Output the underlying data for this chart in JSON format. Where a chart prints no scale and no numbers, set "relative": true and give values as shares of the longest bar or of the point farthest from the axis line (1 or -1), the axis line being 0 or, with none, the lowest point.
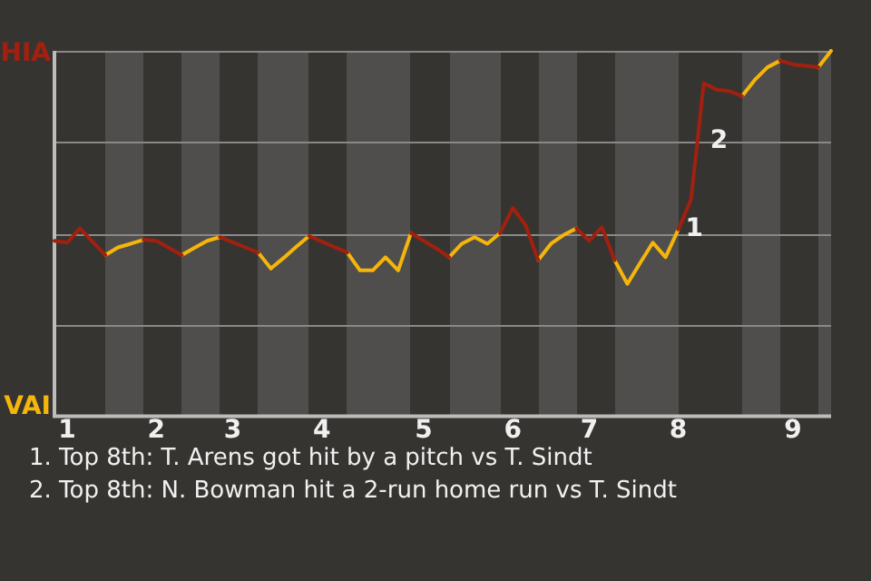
{
  "chart_data": {
    "type": "line",
    "categories": [
      null,
      "1",
      null,
      null,
      null,
      null,
      null,
      null,
      "2",
      null,
      null,
      null,
      null,
      null,
      "3",
      null,
      null,
      null,
      null,
      null,
      null,
      "4",
      null,
      null,
      null,
      null,
      null,
      null,
      null,
      "5",
      null,
      null,
      null,
      null,
      null,
      null,
      "6",
      null,
      null,
      null,
      null,
      null,
      "7",
      null,
      null,
      null,
      null,
      null,
      null,
      "8",
      null,
      null,
      null,
      null,
      null,
      null,
      null,
      null,
      "9",
      null,
      null,
      null
    ],
    "relative": true,
    "series": [
      {
        "name": "HIA",
        "color": "#a2200f",
        "values": [
          0.48,
          0.475,
          0.514,
          0.477,
          0.441,
          null,
          null,
          0.483,
          0.48,
          0.461,
          0.441,
          null,
          null,
          0.49,
          0.476,
          0.462,
          0.448,
          null,
          null,
          null,
          0.493,
          0.478,
          0.463,
          0.448,
          null,
          null,
          null,
          null,
          0.501,
          0.48,
          0.459,
          0.435,
          null,
          null,
          null,
          0.501,
          0.57,
          0.523,
          0.427,
          null,
          null,
          0.514,
          0.48,
          0.517,
          0.427,
          null,
          null,
          null,
          null,
          0.511,
          0.593,
          0.911,
          0.894,
          0.89,
          0.876,
          null,
          null,
          0.973,
          0.963,
          0.959,
          0.955,
          null
        ]
      },
      {
        "name": "VAI",
        "color": "#f5b50a",
        "values": [
          null,
          null,
          null,
          null,
          0.441,
          0.462,
          0.472,
          0.483,
          null,
          null,
          0.441,
          0.461,
          0.48,
          0.49,
          null,
          null,
          0.448,
          0.404,
          0.433,
          0.464,
          0.493,
          null,
          null,
          0.448,
          0.399,
          0.399,
          0.435,
          0.399,
          0.501,
          null,
          null,
          0.435,
          0.472,
          0.49,
          0.472,
          0.501,
          null,
          null,
          0.427,
          0.472,
          0.496,
          0.514,
          null,
          null,
          0.427,
          0.362,
          0.419,
          0.475,
          0.435,
          0.511,
          null,
          null,
          null,
          null,
          0.876,
          0.92,
          0.955,
          0.973,
          null,
          null,
          0.955,
          1
        ]
      }
    ],
    "grid": "y",
    "legend": "left",
    "marker": "none",
    "annotations": [
      {
        "text": "1",
        "x": "8",
        "y": 0.511
      },
      {
        "text": "2",
        "y": 0.911
      },
      "1. Top 8th: T. Arens got hit by a pitch vs T. Sindt",
      "2. Top 8th: N. Bowman hit a 2-run home run vs T. Sindt"
    ]
  }
}
